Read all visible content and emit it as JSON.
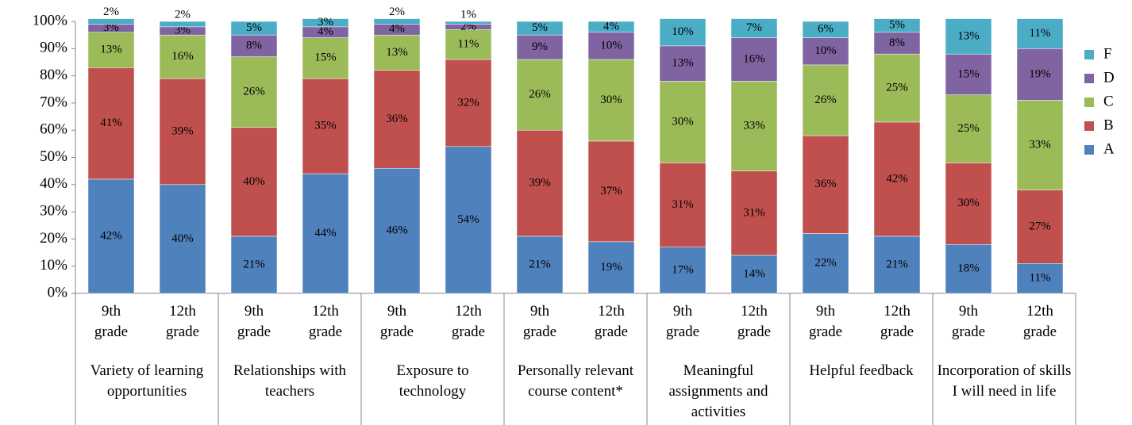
{
  "chart_data": {
    "type": "stacked_bar",
    "categories": [
      "9th grade",
      "12th grade",
      "9th grade",
      "12th grade",
      "9th grade",
      "12th grade",
      "9th grade",
      "12th grade",
      "9th grade",
      "12th grade",
      "9th grade",
      "12th grade",
      "9th grade",
      "12th grade"
    ],
    "groups": [
      "Variety of learning opportunities",
      "Relationships with teachers",
      "Exposure to technology",
      "Personally relevant course content*",
      "Meaningful assignments and activities",
      "Helpful feedback",
      "Incorporation of skills I will need in life"
    ],
    "series": [
      {
        "name": "A",
        "color": "#4f81bd",
        "values": [
          42,
          40,
          21,
          44,
          46,
          54,
          21,
          19,
          17,
          14,
          22,
          21,
          18,
          11
        ],
        "value_labels": [
          "42%",
          "40%",
          "21%",
          "44%",
          "46%",
          "54%",
          "21%",
          "19%",
          "17%",
          "14%",
          "22%",
          "21%",
          "18%",
          "11%"
        ]
      },
      {
        "name": "B",
        "color": "#c0504d",
        "values": [
          41,
          39,
          40,
          35,
          36,
          32,
          39,
          37,
          31,
          31,
          36,
          42,
          30,
          27
        ],
        "value_labels": [
          "41%",
          "39%",
          "40%",
          "35%",
          "36%",
          "32%",
          "39%",
          "37%",
          "31%",
          "31%",
          "36%",
          "42%",
          "30%",
          "27%"
        ]
      },
      {
        "name": "C",
        "color": "#9bbb59",
        "values": [
          13,
          16,
          26,
          15,
          13,
          11,
          26,
          30,
          30,
          33,
          26,
          25,
          25,
          33
        ],
        "value_labels": [
          "13%",
          "16%",
          "26%",
          "15%",
          "13%",
          "11%",
          "26%",
          "30%",
          "30%",
          "33%",
          "26%",
          "25%",
          "25%",
          "33%"
        ]
      },
      {
        "name": "D",
        "color": "#8064a2",
        "values": [
          3,
          3,
          8,
          4,
          4,
          2,
          9,
          10,
          13,
          16,
          10,
          8,
          15,
          19
        ],
        "value_labels": [
          "3%",
          "3%",
          "8%",
          "4%",
          "4%",
          "2%",
          "9%",
          "10%",
          "13%",
          "16%",
          "10%",
          "8%",
          "15%",
          "19%"
        ]
      },
      {
        "name": "F",
        "color": "#4bacc6",
        "values": [
          2,
          2,
          5,
          3,
          2,
          1,
          5,
          4,
          10,
          7,
          6,
          5,
          13,
          11
        ],
        "value_labels": [
          "2%",
          "2%",
          "5%",
          "3%",
          "2%",
          "1%",
          "5%",
          "4%",
          "10%",
          "7%",
          "6%",
          "5%",
          "13%",
          "11%"
        ]
      }
    ],
    "ylim": [
      0,
      100
    ],
    "yticks": [
      {
        "value": 0,
        "label": "0%"
      },
      {
        "value": 10,
        "label": "10%"
      },
      {
        "value": 20,
        "label": "20%"
      },
      {
        "value": 30,
        "label": "30%"
      },
      {
        "value": 40,
        "label": "40%"
      },
      {
        "value": 50,
        "label": "50%"
      },
      {
        "value": 60,
        "label": "60%"
      },
      {
        "value": 70,
        "label": "70%"
      },
      {
        "value": 80,
        "label": "80%"
      },
      {
        "value": 90,
        "label": "90%"
      },
      {
        "value": 100,
        "label": "100%"
      }
    ],
    "legend": "right"
  }
}
